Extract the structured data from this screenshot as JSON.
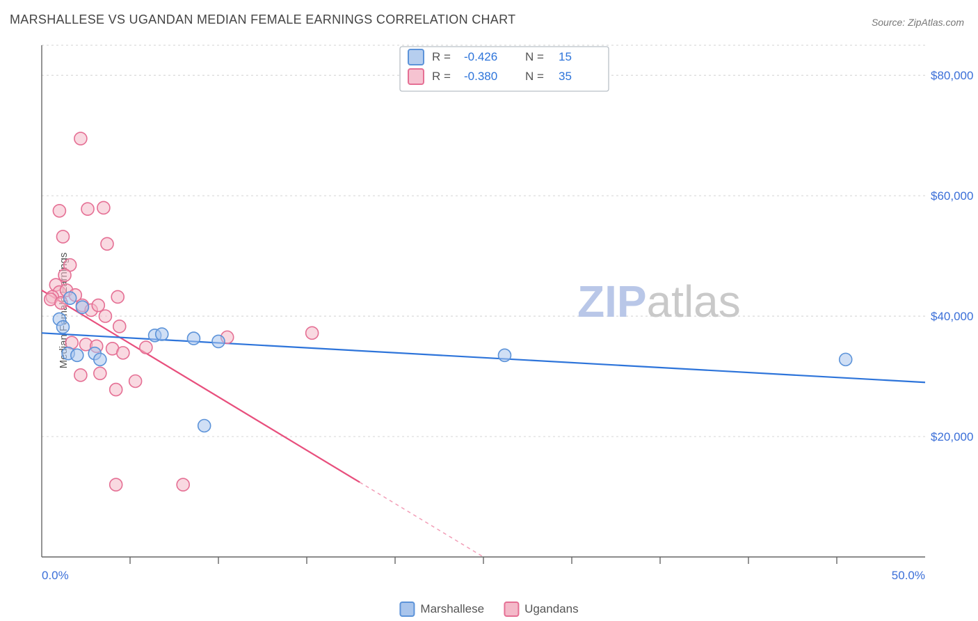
{
  "title": "MARSHALLESE VS UGANDAN MEDIAN FEMALE EARNINGS CORRELATION CHART",
  "source_label": "Source:",
  "source_name": "ZipAtlas.com",
  "ylabel": "Median Female Earnings",
  "watermark_a": "ZIP",
  "watermark_b": "atlas",
  "chart": {
    "type": "scatter-with-trend",
    "background_color": "#ffffff",
    "grid_color": "#d9d9d9",
    "grid_dash": "3,4",
    "axis_color": "#666666",
    "xlim": [
      0,
      50
    ],
    "ylim": [
      0,
      85000
    ],
    "x_tick_positions": [
      5,
      10,
      15,
      20,
      25,
      30,
      35,
      40,
      45
    ],
    "y_gridlines": [
      20000,
      40000,
      60000,
      80000,
      85000
    ],
    "y_tick_labels": [
      "$20,000",
      "$40,000",
      "$60,000",
      "$80,000"
    ],
    "x_axis_label_left": "0.0%",
    "x_axis_label_right": "50.0%",
    "marker_radius": 9,
    "marker_opacity": 0.55,
    "series": {
      "marshallese": {
        "label": "Marshallese",
        "fill": "#a9c5ec",
        "stroke": "#5c93d9",
        "trend_color": "#2d74da",
        "trend_width": 2.2,
        "R": "-0.426",
        "N": "15",
        "trend": {
          "x1": 0,
          "y1": 37200,
          "x2": 50,
          "y2": 29000
        },
        "points": [
          {
            "x": 1.0,
            "y": 39500
          },
          {
            "x": 1.2,
            "y": 38200
          },
          {
            "x": 2.3,
            "y": 41500
          },
          {
            "x": 1.5,
            "y": 33800
          },
          {
            "x": 2.0,
            "y": 33500
          },
          {
            "x": 3.0,
            "y": 33800
          },
          {
            "x": 3.3,
            "y": 32800
          },
          {
            "x": 6.4,
            "y": 36800
          },
          {
            "x": 6.8,
            "y": 37000
          },
          {
            "x": 8.6,
            "y": 36300
          },
          {
            "x": 10.0,
            "y": 35800
          },
          {
            "x": 9.2,
            "y": 21800
          },
          {
            "x": 26.2,
            "y": 33500
          },
          {
            "x": 45.5,
            "y": 32800
          },
          {
            "x": 1.6,
            "y": 43000
          }
        ]
      },
      "ugandans": {
        "label": "Ugandans",
        "fill": "#f4b9c9",
        "stroke": "#e56f94",
        "trend_color": "#e84f7d",
        "trend_width": 2.2,
        "R": "-0.380",
        "N": "35",
        "trend": {
          "x1": 0,
          "y1": 44300,
          "x2": 25,
          "y2": 0
        },
        "trend_dash_after_x": 18,
        "points": [
          {
            "x": 2.2,
            "y": 69500
          },
          {
            "x": 1.0,
            "y": 57500
          },
          {
            "x": 2.6,
            "y": 57800
          },
          {
            "x": 3.5,
            "y": 58000
          },
          {
            "x": 1.2,
            "y": 53200
          },
          {
            "x": 3.7,
            "y": 52000
          },
          {
            "x": 1.6,
            "y": 48500
          },
          {
            "x": 1.3,
            "y": 46800
          },
          {
            "x": 0.8,
            "y": 45200
          },
          {
            "x": 1.0,
            "y": 44000
          },
          {
            "x": 1.4,
            "y": 44300
          },
          {
            "x": 0.6,
            "y": 43200
          },
          {
            "x": 1.9,
            "y": 43500
          },
          {
            "x": 0.5,
            "y": 42800
          },
          {
            "x": 1.1,
            "y": 42200
          },
          {
            "x": 2.3,
            "y": 41800
          },
          {
            "x": 2.8,
            "y": 41000
          },
          {
            "x": 3.2,
            "y": 41800
          },
          {
            "x": 3.6,
            "y": 40000
          },
          {
            "x": 4.3,
            "y": 43200
          },
          {
            "x": 1.7,
            "y": 35600
          },
          {
            "x": 2.5,
            "y": 35300
          },
          {
            "x": 3.1,
            "y": 35000
          },
          {
            "x": 4.0,
            "y": 34600
          },
          {
            "x": 4.6,
            "y": 33900
          },
          {
            "x": 4.4,
            "y": 38300
          },
          {
            "x": 5.9,
            "y": 34800
          },
          {
            "x": 2.2,
            "y": 30200
          },
          {
            "x": 3.3,
            "y": 30500
          },
          {
            "x": 4.2,
            "y": 27800
          },
          {
            "x": 5.3,
            "y": 29200
          },
          {
            "x": 10.5,
            "y": 36500
          },
          {
            "x": 15.3,
            "y": 37200
          },
          {
            "x": 4.2,
            "y": 12000
          },
          {
            "x": 8.0,
            "y": 12000
          }
        ]
      }
    },
    "stats_box": {
      "border_color": "#b9c0c7",
      "bg_color": "#ffffff",
      "label_R": "R =",
      "label_N": "N =",
      "value_color": "#2d74da"
    }
  },
  "legend_bottom": {
    "items": [
      "marshallese",
      "ugandans"
    ]
  }
}
